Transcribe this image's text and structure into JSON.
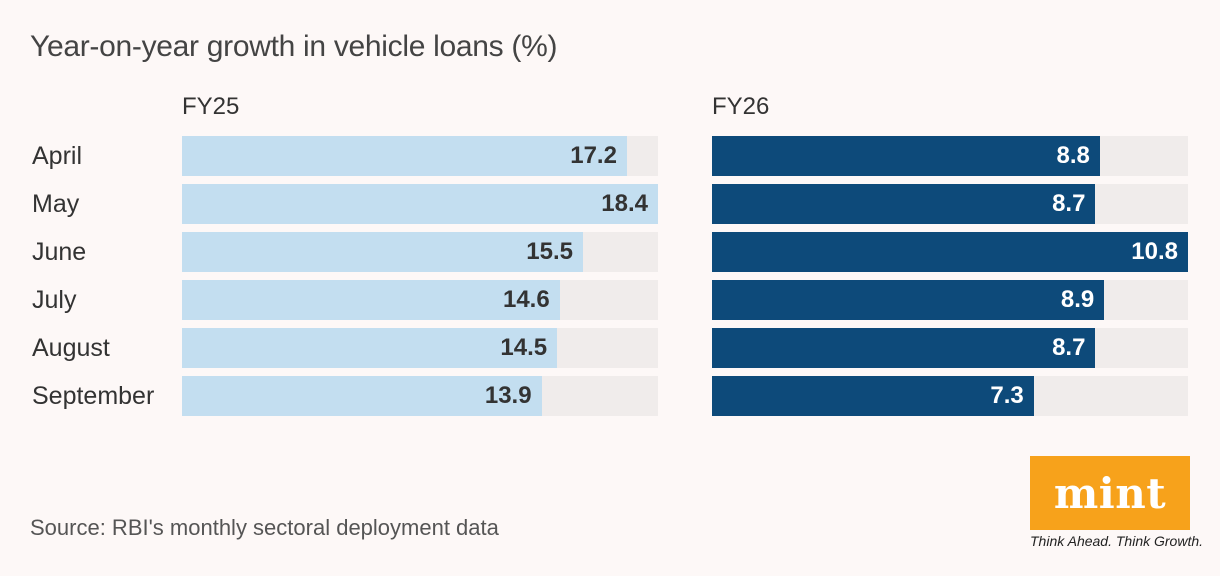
{
  "chart_data": {
    "type": "bar",
    "orientation": "horizontal",
    "title": "Year-on-year growth in vehicle loans (%)",
    "categories": [
      "April",
      "May",
      "June",
      "July",
      "August",
      "September"
    ],
    "series": [
      {
        "name": "FY25",
        "values": [
          17.2,
          18.4,
          15.5,
          14.6,
          14.5,
          13.9
        ],
        "color": "#c3def0",
        "max": 18.4
      },
      {
        "name": "FY26",
        "values": [
          8.8,
          8.7,
          10.8,
          8.9,
          8.7,
          7.3
        ],
        "color": "#0d4a7a",
        "max": 10.8
      }
    ],
    "grid": false,
    "legend": "none"
  },
  "source": "Source: RBI's monthly sectoral deployment data",
  "logo": {
    "text": "mint",
    "tagline": "Think Ahead. Think Growth.",
    "color": "#f7a21b"
  }
}
